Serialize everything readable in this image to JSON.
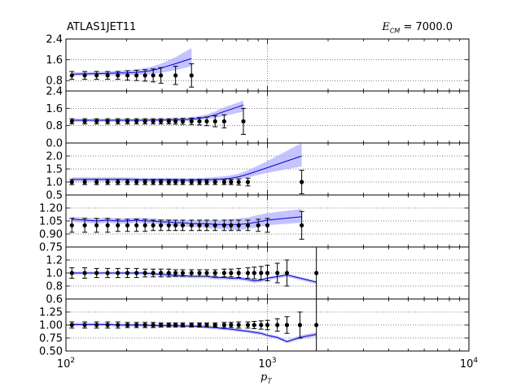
{
  "header": {
    "title": "ATLAS1JET11",
    "ecm_symbol": "E",
    "ecm_subscript": "CM",
    "ecm_value": "= 7000.0",
    "xlabel_symbol": "p",
    "xlabel_subscript": "T"
  },
  "chart_data": {
    "type": "line",
    "title": "ATLAS1JET11",
    "xlabel": "p_T",
    "xscale": "log",
    "xlim": [
      100,
      10000
    ],
    "x_ticks": [
      {
        "base": "10",
        "exp": "2",
        "v": 100
      },
      {
        "base": "10",
        "exp": "3",
        "v": 1000
      },
      {
        "base": "10",
        "exp": "4",
        "v": 10000
      }
    ],
    "grid": true,
    "colors": {
      "line": "#0000cc",
      "band": "#b0b0ff",
      "points": "#000000"
    },
    "panels": [
      {
        "ylim": [
          0.4,
          2.4
        ],
        "yticks": [
          "0.8",
          "1.6",
          "2.4"
        ],
        "ytick_values": [
          0.8,
          1.6,
          2.4
        ],
        "x": [
          107,
          124,
          142,
          161,
          181,
          202,
          224,
          247,
          271,
          296,
          350,
          420
        ],
        "data_y": [
          1,
          1,
          1,
          1,
          1,
          1,
          1,
          1,
          1,
          1,
          1,
          1
        ],
        "data_err": [
          0.15,
          0.15,
          0.15,
          0.15,
          0.15,
          0.18,
          0.2,
          0.22,
          0.25,
          0.3,
          0.35,
          0.45
        ],
        "theory_x": [
          107,
          124,
          142,
          161,
          181,
          202,
          224,
          247,
          271,
          296,
          350,
          420
        ],
        "theory_y": [
          1.05,
          1.06,
          1.07,
          1.08,
          1.09,
          1.1,
          1.12,
          1.15,
          1.2,
          1.28,
          1.45,
          1.65
        ],
        "band_lo": [
          0.98,
          0.99,
          1.0,
          1.0,
          1.0,
          1.01,
          1.02,
          1.03,
          1.05,
          1.1,
          1.2,
          1.35
        ],
        "band_hi": [
          1.12,
          1.13,
          1.14,
          1.16,
          1.18,
          1.2,
          1.23,
          1.28,
          1.35,
          1.45,
          1.7,
          2.05
        ]
      },
      {
        "ylim": [
          0.0,
          2.4
        ],
        "yticks": [
          "0.0",
          "0.8",
          "1.6",
          "2.4"
        ],
        "ytick_values": [
          0.0,
          0.8,
          1.6,
          2.4
        ],
        "x": [
          107,
          124,
          142,
          161,
          181,
          202,
          224,
          247,
          271,
          296,
          324,
          350,
          380,
          420,
          460,
          500,
          550,
          610,
          760
        ],
        "data_y": [
          1,
          1,
          1,
          1,
          1,
          1,
          1,
          1,
          1,
          1,
          1,
          1,
          1,
          1,
          1,
          1,
          1,
          1,
          1
        ],
        "data_err": [
          0.12,
          0.12,
          0.12,
          0.12,
          0.12,
          0.12,
          0.12,
          0.12,
          0.12,
          0.12,
          0.12,
          0.13,
          0.14,
          0.15,
          0.17,
          0.2,
          0.25,
          0.3,
          0.6
        ],
        "theory_x": [
          107,
          124,
          142,
          161,
          181,
          202,
          224,
          247,
          271,
          296,
          324,
          350,
          380,
          420,
          460,
          500,
          550,
          610,
          760
        ],
        "theory_y": [
          1.05,
          1.05,
          1.05,
          1.05,
          1.05,
          1.05,
          1.05,
          1.05,
          1.06,
          1.06,
          1.06,
          1.07,
          1.08,
          1.1,
          1.14,
          1.2,
          1.3,
          1.45,
          1.75
        ],
        "band_lo": [
          0.98,
          0.98,
          0.98,
          0.98,
          0.98,
          0.99,
          0.99,
          0.99,
          1.0,
          1.0,
          1.0,
          1.01,
          1.02,
          1.03,
          1.06,
          1.1,
          1.15,
          1.25,
          1.45
        ],
        "band_hi": [
          1.12,
          1.12,
          1.12,
          1.12,
          1.12,
          1.12,
          1.12,
          1.13,
          1.13,
          1.13,
          1.14,
          1.15,
          1.16,
          1.2,
          1.25,
          1.32,
          1.45,
          1.65,
          1.95
        ]
      },
      {
        "ylim": [
          0.5,
          2.5
        ],
        "yticks": [
          "0.5",
          "1.0",
          "1.5",
          "2.0"
        ],
        "ytick_values": [
          0.5,
          1.0,
          1.5,
          2.0
        ],
        "x": [
          107,
          124,
          142,
          161,
          181,
          202,
          224,
          247,
          271,
          296,
          324,
          350,
          380,
          420,
          460,
          500,
          550,
          610,
          660,
          720,
          800,
          1480
        ],
        "data_y": [
          1,
          1,
          1,
          1,
          1,
          1,
          1,
          1,
          1,
          1,
          1,
          1,
          1,
          1,
          1,
          1,
          1,
          1,
          1,
          1,
          1,
          1
        ],
        "data_err": [
          0.1,
          0.1,
          0.1,
          0.1,
          0.1,
          0.1,
          0.1,
          0.1,
          0.1,
          0.1,
          0.1,
          0.1,
          0.1,
          0.1,
          0.1,
          0.1,
          0.1,
          0.1,
          0.1,
          0.12,
          0.15,
          0.45
        ],
        "theory_x": [
          107,
          124,
          142,
          161,
          181,
          202,
          224,
          247,
          271,
          296,
          324,
          350,
          380,
          420,
          460,
          500,
          550,
          610,
          660,
          720,
          800,
          1000,
          1480
        ],
        "theory_y": [
          1.1,
          1.1,
          1.1,
          1.1,
          1.1,
          1.1,
          1.08,
          1.08,
          1.08,
          1.08,
          1.08,
          1.07,
          1.07,
          1.07,
          1.08,
          1.08,
          1.1,
          1.12,
          1.15,
          1.2,
          1.3,
          1.55,
          2.0
        ],
        "band_lo": [
          1.02,
          1.02,
          1.02,
          1.02,
          1.02,
          1.02,
          1.01,
          1.01,
          1.01,
          1.01,
          1.01,
          1.0,
          1.0,
          1.0,
          1.01,
          1.01,
          1.02,
          1.04,
          1.06,
          1.1,
          1.18,
          1.35,
          1.6
        ],
        "band_hi": [
          1.18,
          1.18,
          1.18,
          1.18,
          1.18,
          1.18,
          1.16,
          1.16,
          1.16,
          1.16,
          1.16,
          1.15,
          1.15,
          1.15,
          1.16,
          1.17,
          1.19,
          1.22,
          1.26,
          1.32,
          1.45,
          1.8,
          2.5
        ]
      },
      {
        "ylim": [
          0.75,
          1.35
        ],
        "yticks": [
          "0.75",
          "0.90",
          "1.05",
          "1.20"
        ],
        "ytick_values": [
          0.75,
          0.9,
          1.05,
          1.2
        ],
        "x": [
          107,
          124,
          142,
          161,
          181,
          202,
          224,
          247,
          271,
          296,
          324,
          350,
          380,
          420,
          460,
          500,
          550,
          610,
          660,
          720,
          800,
          900,
          1000,
          1480
        ],
        "data_y": [
          1,
          1,
          1,
          1,
          1,
          1,
          1,
          1,
          1,
          1,
          1,
          1,
          1,
          1,
          1,
          1,
          1,
          1,
          1,
          1,
          1,
          1,
          1,
          1
        ],
        "data_err": [
          0.08,
          0.08,
          0.08,
          0.08,
          0.07,
          0.07,
          0.07,
          0.07,
          0.06,
          0.06,
          0.06,
          0.06,
          0.06,
          0.06,
          0.06,
          0.06,
          0.06,
          0.06,
          0.06,
          0.06,
          0.06,
          0.07,
          0.08,
          0.16
        ],
        "theory_x": [
          107,
          124,
          142,
          161,
          181,
          202,
          224,
          247,
          271,
          296,
          324,
          350,
          380,
          420,
          460,
          500,
          550,
          610,
          660,
          720,
          800,
          900,
          1000,
          1480
        ],
        "theory_y": [
          1.07,
          1.06,
          1.05,
          1.06,
          1.05,
          1.05,
          1.06,
          1.05,
          1.05,
          1.04,
          1.04,
          1.03,
          1.03,
          1.02,
          1.02,
          1.02,
          1.01,
          1.01,
          1.01,
          1.01,
          1.02,
          1.04,
          1.06,
          1.1
        ],
        "band_lo": [
          1.04,
          1.03,
          1.02,
          1.03,
          1.02,
          1.02,
          1.03,
          1.02,
          1.02,
          1.01,
          1.0,
          0.99,
          0.99,
          0.98,
          0.98,
          0.97,
          0.96,
          0.96,
          0.95,
          0.95,
          0.96,
          0.98,
          1.0,
          1.03
        ],
        "band_hi": [
          1.1,
          1.09,
          1.08,
          1.09,
          1.08,
          1.08,
          1.09,
          1.08,
          1.08,
          1.07,
          1.07,
          1.06,
          1.06,
          1.06,
          1.06,
          1.06,
          1.06,
          1.06,
          1.07,
          1.08,
          1.09,
          1.12,
          1.14,
          1.19
        ]
      },
      {
        "ylim": [
          0.6,
          1.4
        ],
        "yticks": [
          "0.6",
          "0.8",
          "1.0",
          "1.2"
        ],
        "ytick_values": [
          0.6,
          0.8,
          1.0,
          1.2
        ],
        "x": [
          107,
          124,
          142,
          161,
          181,
          202,
          224,
          247,
          271,
          296,
          324,
          350,
          380,
          420,
          460,
          500,
          550,
          610,
          660,
          720,
          800,
          860,
          930,
          1000,
          1120,
          1250,
          1750
        ],
        "data_y": [
          1,
          1,
          1,
          1,
          1,
          1,
          1,
          1,
          1,
          1,
          1,
          1,
          1,
          1,
          1,
          1,
          1,
          1,
          1,
          1,
          1,
          1,
          1,
          1,
          1,
          1,
          1
        ],
        "data_err": [
          0.08,
          0.08,
          0.07,
          0.07,
          0.07,
          0.07,
          0.07,
          0.06,
          0.06,
          0.06,
          0.06,
          0.05,
          0.05,
          0.05,
          0.05,
          0.05,
          0.05,
          0.06,
          0.06,
          0.07,
          0.08,
          0.09,
          0.1,
          0.12,
          0.15,
          0.2,
          0.4
        ],
        "theory_x": [
          107,
          124,
          142,
          161,
          181,
          202,
          224,
          247,
          271,
          296,
          324,
          350,
          380,
          420,
          460,
          500,
          550,
          610,
          660,
          720,
          800,
          860,
          930,
          1000,
          1250,
          1750
        ],
        "theory_y": [
          1.0,
          1.0,
          1.0,
          1.0,
          1.0,
          1.0,
          1.0,
          1.0,
          0.99,
          0.98,
          0.97,
          0.96,
          0.96,
          0.95,
          0.95,
          0.95,
          0.93,
          0.93,
          0.92,
          0.92,
          0.9,
          0.88,
          0.89,
          0.92,
          0.97,
          0.86
        ],
        "band_lo": [
          0.98,
          0.98,
          0.98,
          0.98,
          0.98,
          0.98,
          0.98,
          0.97,
          0.96,
          0.95,
          0.94,
          0.93,
          0.93,
          0.92,
          0.92,
          0.92,
          0.9,
          0.9,
          0.89,
          0.89,
          0.87,
          0.85,
          0.86,
          0.89,
          0.94,
          0.83
        ],
        "band_hi": [
          1.02,
          1.02,
          1.02,
          1.02,
          1.02,
          1.02,
          1.02,
          1.02,
          1.01,
          1.0,
          0.99,
          0.98,
          0.98,
          0.97,
          0.97,
          0.97,
          0.95,
          0.95,
          0.94,
          0.94,
          0.92,
          0.9,
          0.91,
          0.94,
          0.99,
          0.88
        ]
      },
      {
        "ylim": [
          0.5,
          1.5
        ],
        "yticks": [
          "0.50",
          "0.75",
          "1.00",
          "1.25"
        ],
        "ytick_values": [
          0.5,
          0.75,
          1.0,
          1.25
        ],
        "x": [
          107,
          124,
          142,
          161,
          181,
          202,
          224,
          247,
          271,
          296,
          324,
          350,
          380,
          420,
          460,
          500,
          550,
          610,
          660,
          720,
          800,
          860,
          930,
          1000,
          1120,
          1250,
          1450,
          1750
        ],
        "data_y": [
          1,
          1,
          1,
          1,
          1,
          1,
          1,
          1,
          1,
          1,
          1,
          1,
          1,
          1,
          1,
          1,
          1,
          1,
          1,
          1,
          1,
          1,
          1,
          1,
          1,
          1,
          1,
          1
        ],
        "data_err": [
          0.06,
          0.06,
          0.06,
          0.06,
          0.06,
          0.05,
          0.05,
          0.05,
          0.05,
          0.04,
          0.04,
          0.04,
          0.04,
          0.04,
          0.04,
          0.04,
          0.04,
          0.05,
          0.05,
          0.06,
          0.06,
          0.07,
          0.08,
          0.09,
          0.12,
          0.16,
          0.25,
          0.55
        ],
        "theory_x": [
          107,
          124,
          142,
          161,
          181,
          202,
          224,
          247,
          271,
          296,
          324,
          350,
          380,
          420,
          460,
          500,
          550,
          610,
          660,
          720,
          800,
          860,
          930,
          1000,
          1120,
          1250,
          1450,
          1750
        ],
        "theory_y": [
          1.01,
          1.01,
          1.01,
          1.01,
          1.0,
          1.0,
          1.0,
          1.0,
          0.99,
          0.99,
          0.99,
          0.99,
          0.98,
          0.98,
          0.97,
          0.96,
          0.95,
          0.93,
          0.92,
          0.9,
          0.88,
          0.86,
          0.84,
          0.8,
          0.76,
          0.68,
          0.76,
          0.82
        ],
        "band_lo": [
          0.98,
          0.98,
          0.98,
          0.98,
          0.97,
          0.97,
          0.97,
          0.97,
          0.96,
          0.96,
          0.96,
          0.96,
          0.95,
          0.95,
          0.94,
          0.93,
          0.92,
          0.9,
          0.89,
          0.87,
          0.85,
          0.83,
          0.81,
          0.77,
          0.73,
          0.65,
          0.72,
          0.78
        ],
        "band_hi": [
          1.04,
          1.04,
          1.04,
          1.04,
          1.03,
          1.03,
          1.03,
          1.03,
          1.02,
          1.02,
          1.02,
          1.02,
          1.01,
          1.01,
          1.0,
          0.99,
          0.98,
          0.96,
          0.95,
          0.93,
          0.91,
          0.89,
          0.87,
          0.83,
          0.79,
          0.71,
          0.8,
          0.86
        ]
      }
    ]
  }
}
